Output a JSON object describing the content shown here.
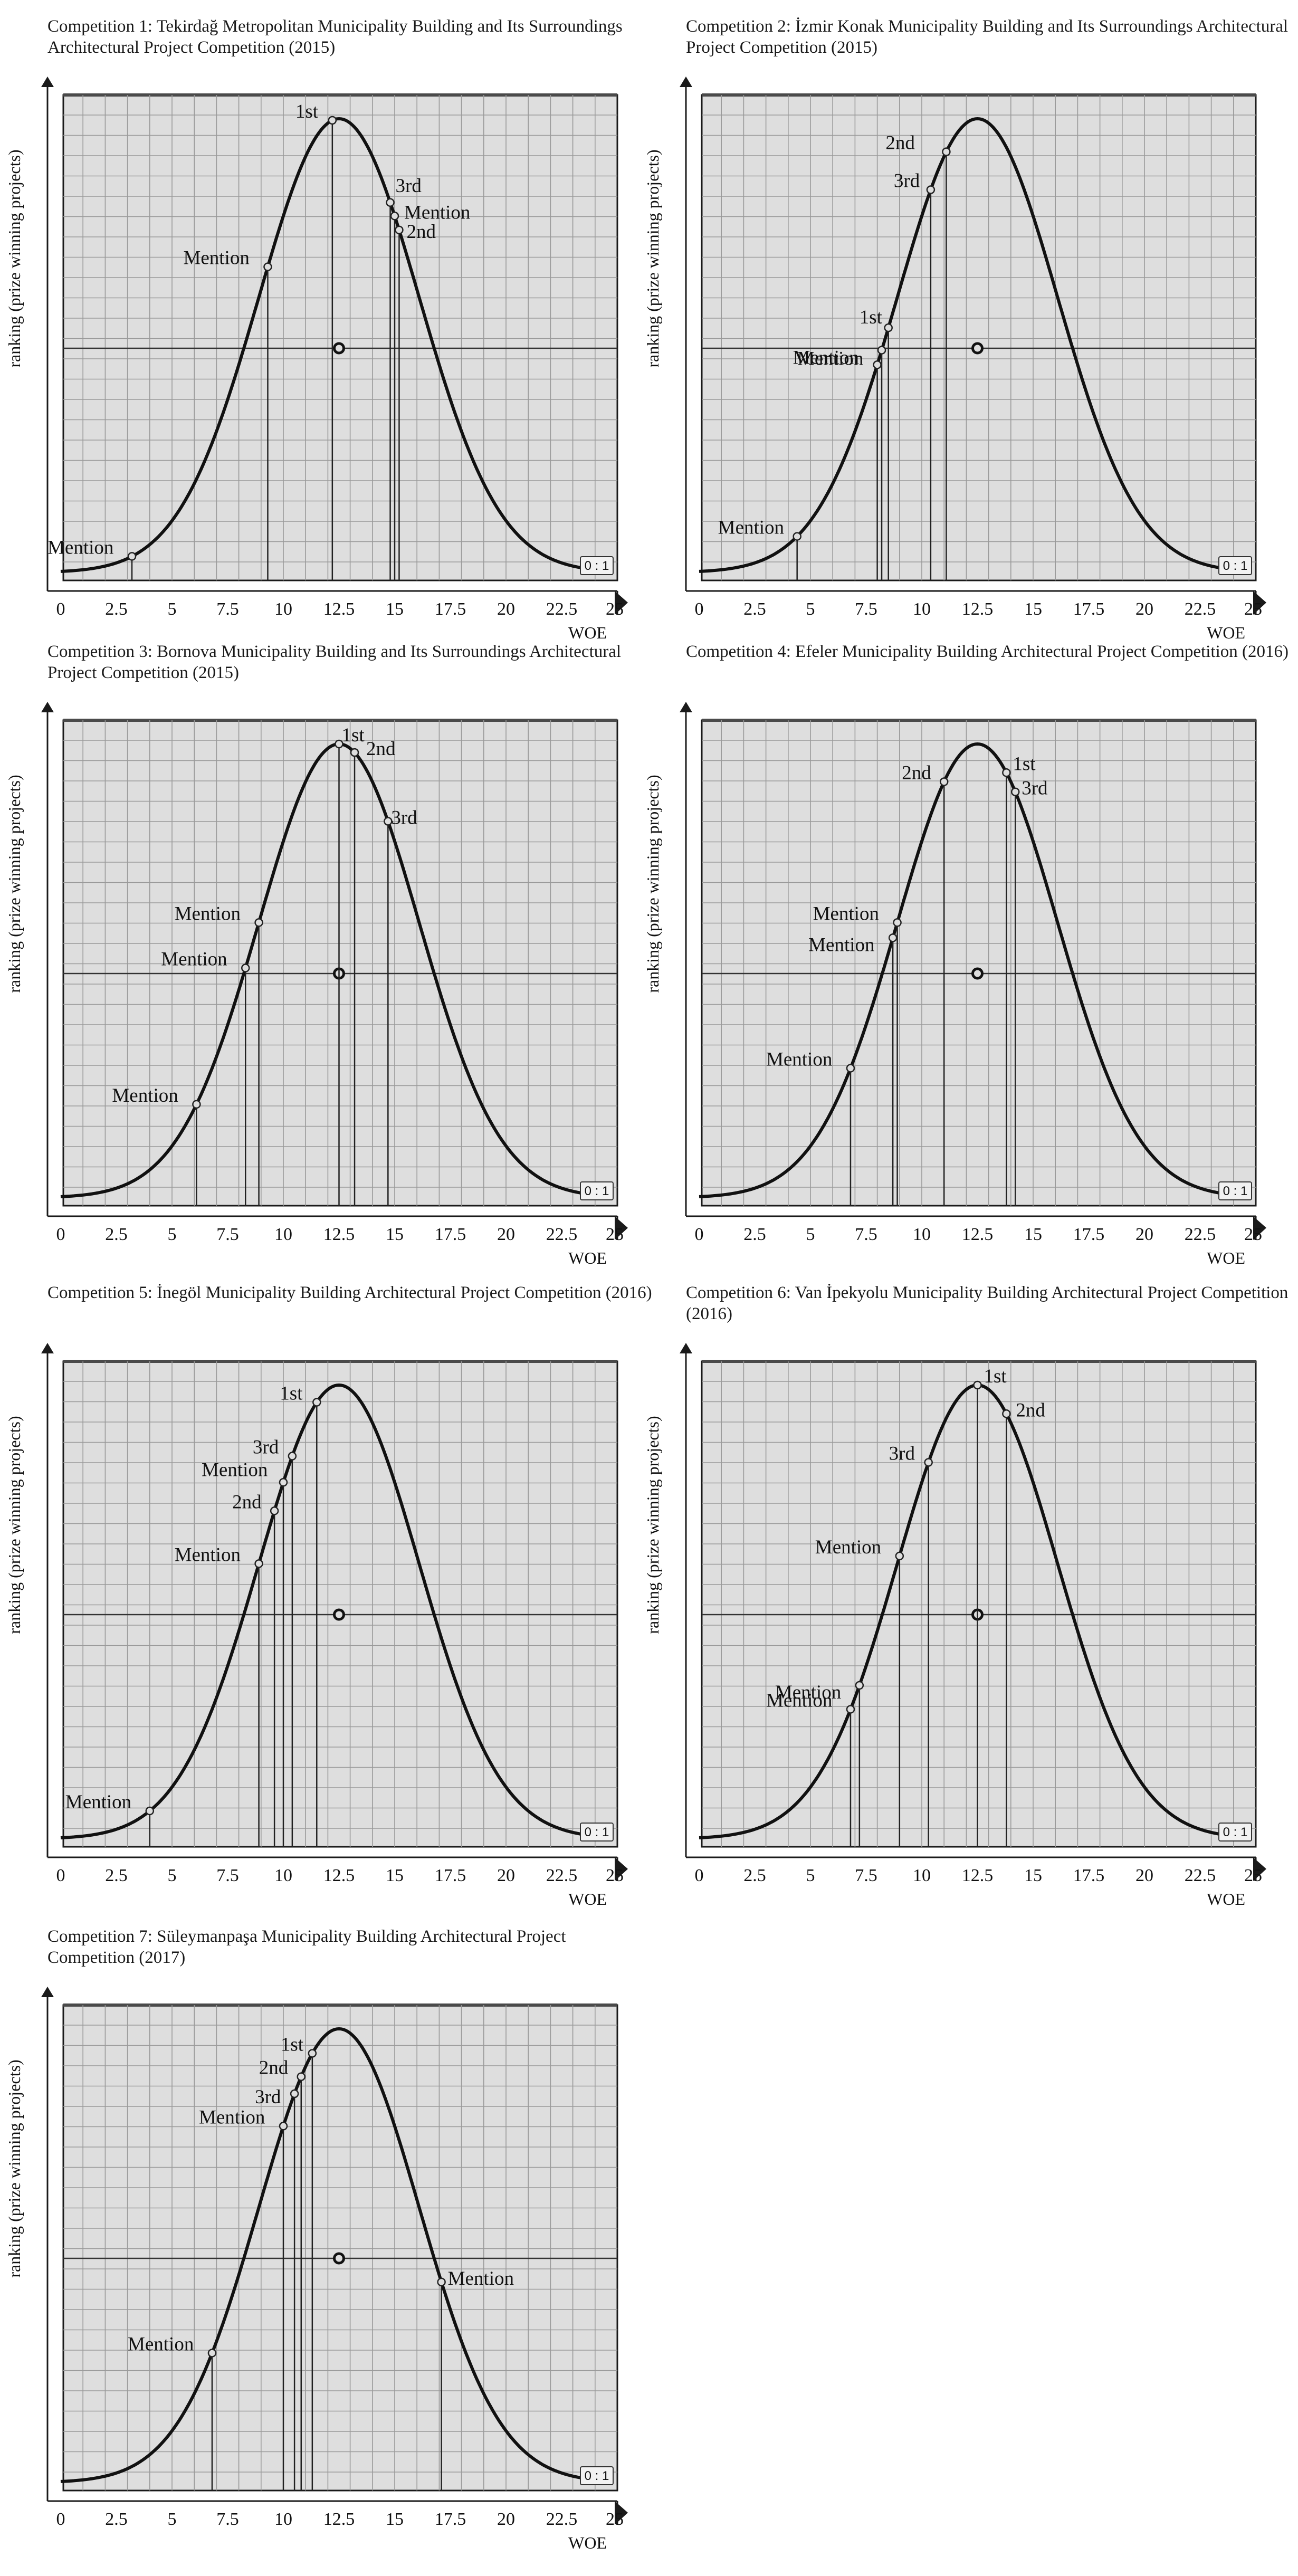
{
  "chart_data": [
    {
      "type": "line",
      "title": "Competition 1: Tekirdağ Metropolitan Municipality Building and Its Surroundings Architectural Project Competition (2015)",
      "xlabel": "WOE",
      "ylabel": "ranking (prize winning projects)",
      "xlim": [
        0,
        25
      ],
      "x_ticks": [
        "0",
        "2.5",
        "5",
        "7.5",
        "10",
        "12.5",
        "15",
        "17.5",
        "20",
        "22.5",
        "25"
      ],
      "badge": "0 : 1",
      "points": [
        {
          "label": "Mention",
          "x": 3.2
        },
        {
          "label": "Mention",
          "x": 9.3
        },
        {
          "label": "1st",
          "x": 12.2
        },
        {
          "label": "3rd",
          "x": 14.8
        },
        {
          "label": "Mention",
          "x": 15.0
        },
        {
          "label": "2nd",
          "x": 15.2
        }
      ]
    },
    {
      "type": "line",
      "title": "Competition 2:  İzmir Konak Municipality Building and Its Surroundings Architectural Project Competition (2015)",
      "xlabel": "WOE",
      "ylabel": "ranking (prize winning projects)",
      "xlim": [
        0,
        25
      ],
      "x_ticks": [
        "0",
        "2.5",
        "5",
        "7.5",
        "10",
        "12.5",
        "15",
        "17.5",
        "20",
        "22.5",
        "25"
      ],
      "badge": "0 : 1",
      "points": [
        {
          "label": "Mention",
          "x": 4.4
        },
        {
          "label": "Mention",
          "x": 8.0
        },
        {
          "label": "Mention",
          "x": 8.2
        },
        {
          "label": "1st",
          "x": 8.5
        },
        {
          "label": "3rd",
          "x": 10.4
        },
        {
          "label": "2nd",
          "x": 11.1
        }
      ]
    },
    {
      "type": "line",
      "title": "Competition 3: Bornova Municipality Building and Its Surroundings Architectural Project Competition (2015)",
      "xlabel": "WOE",
      "ylabel": "ranking (prize winning projects)",
      "xlim": [
        0,
        25
      ],
      "x_ticks": [
        "0",
        "2.5",
        "5",
        "7.5",
        "10",
        "12.5",
        "15",
        "17.5",
        "20",
        "22.5",
        "25"
      ],
      "badge": "0 : 1",
      "points": [
        {
          "label": "Mention",
          "x": 6.1
        },
        {
          "label": "Mention",
          "x": 8.3
        },
        {
          "label": "Mention",
          "x": 8.9
        },
        {
          "label": "1st",
          "x": 12.5
        },
        {
          "label": "2nd",
          "x": 13.2
        },
        {
          "label": "3rd",
          "x": 14.7
        }
      ]
    },
    {
      "type": "line",
      "title": "Competition 4: Efeler Municipality Building Architectural Project Competition (2016)",
      "xlabel": "WOE",
      "ylabel": "ranking (prize winning projects)",
      "xlim": [
        0,
        25
      ],
      "x_ticks": [
        "0",
        "2.5",
        "5",
        "7.5",
        "10",
        "12.5",
        "15",
        "17.5",
        "20",
        "22.5",
        "25"
      ],
      "badge": "0 : 1",
      "points": [
        {
          "label": "Mention",
          "x": 6.8
        },
        {
          "label": "Mention",
          "x": 8.7
        },
        {
          "label": "Mention",
          "x": 8.9
        },
        {
          "label": "2nd",
          "x": 11.0
        },
        {
          "label": "1st",
          "x": 13.8
        },
        {
          "label": "3rd",
          "x": 14.2
        }
      ]
    },
    {
      "type": "line",
      "title": "Competition 5: İnegöl Municipality Building Architectural Project Competition (2016)",
      "xlabel": "WOE",
      "ylabel": "ranking (prize winning projects)",
      "xlim": [
        0,
        25
      ],
      "x_ticks": [
        "0",
        "2.5",
        "5",
        "7.5",
        "10",
        "12.5",
        "15",
        "17.5",
        "20",
        "22.5",
        "25"
      ],
      "badge": "0 : 1",
      "points": [
        {
          "label": "Mention",
          "x": 4.0
        },
        {
          "label": "Mention",
          "x": 8.9
        },
        {
          "label": "2nd",
          "x": 9.6
        },
        {
          "label": "Mention",
          "x": 10.0
        },
        {
          "label": "3rd",
          "x": 10.4
        },
        {
          "label": "1st",
          "x": 11.5
        }
      ]
    },
    {
      "type": "line",
      "title": "Competition 6: Van İpekyolu Municipality Building Architectural Project Competition (2016)",
      "xlabel": "WOE",
      "ylabel": "ranking (prize winning projects)",
      "xlim": [
        0,
        25
      ],
      "x_ticks": [
        "0",
        "2.5",
        "5",
        "7.5",
        "10",
        "12.5",
        "15",
        "17.5",
        "20",
        "22.5",
        "25"
      ],
      "badge": "0 : 1",
      "points": [
        {
          "label": "Mention",
          "x": 6.8
        },
        {
          "label": "Mention",
          "x": 7.2
        },
        {
          "label": "Mention",
          "x": 9.0
        },
        {
          "label": "3rd",
          "x": 10.3
        },
        {
          "label": "1st",
          "x": 12.5
        },
        {
          "label": "2nd",
          "x": 13.8
        }
      ]
    },
    {
      "type": "line",
      "title": "Competition 7: Süleymanpaşa Municipality Building Architectural Project Competition (2017)",
      "xlabel": "WOE",
      "ylabel": "ranking (prize winning projects)",
      "xlim": [
        0,
        25
      ],
      "x_ticks": [
        "0",
        "2.5",
        "5",
        "7.5",
        "10",
        "12.5",
        "15",
        "17.5",
        "20",
        "22.5",
        "25"
      ],
      "badge": "0 : 1",
      "points": [
        {
          "label": "Mention",
          "x": 6.8
        },
        {
          "label": "Mention",
          "x": 10.0
        },
        {
          "label": "3rd",
          "x": 10.5
        },
        {
          "label": "2nd",
          "x": 10.8
        },
        {
          "label": "1st",
          "x": 11.3
        },
        {
          "label": "Mention",
          "x": 17.1
        }
      ]
    }
  ]
}
